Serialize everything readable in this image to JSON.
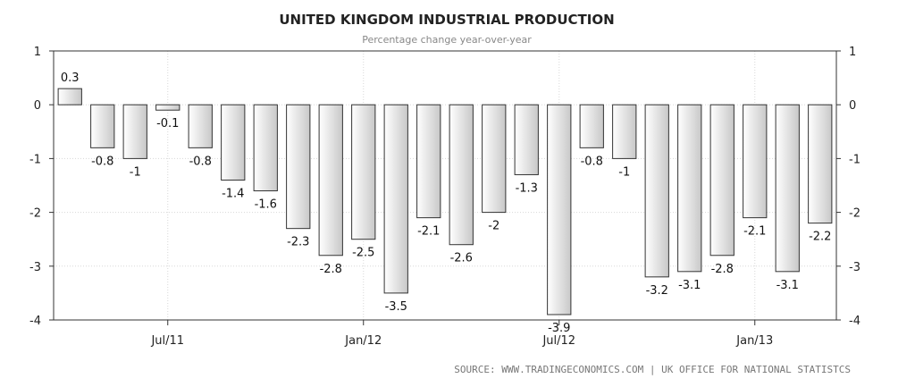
{
  "chart_data": {
    "type": "bar",
    "title": "UNITED KINGDOM INDUSTRIAL PRODUCTION",
    "subtitle": "Percentage change year-over-year",
    "source": "SOURCE: WWW.TRADINGECONOMICS.COM  |  UK OFFICE FOR NATIONAL STATISTCS",
    "values": [
      0.3,
      -0.8,
      -1,
      -0.1,
      -0.8,
      -1.4,
      -1.6,
      -2.3,
      -2.8,
      -2.5,
      -3.5,
      -2.1,
      -2.6,
      -2,
      -1.3,
      -3.9,
      -0.8,
      -1,
      -3.2,
      -3.1,
      -2.8,
      -2.1,
      -3.1,
      -2.2
    ],
    "data_labels": [
      "0.3",
      "-0.8",
      "-1",
      "-0.1",
      "-0.8",
      "-1.4",
      "-1.6",
      "-2.3",
      "-2.8",
      "-2.5",
      "-3.5",
      "-2.1",
      "-2.6",
      "-2",
      "-1.3",
      "-3.9",
      "-0.8",
      "-1",
      "-3.2",
      "-3.1",
      "-2.8",
      "-2.1",
      "-3.1",
      "-2.2"
    ],
    "x_tick_labels": [
      {
        "label": "Jul/11",
        "index": 3
      },
      {
        "label": "Jan/12",
        "index": 9
      },
      {
        "label": "Jul/12",
        "index": 15
      },
      {
        "label": "Jan/13",
        "index": 21
      }
    ],
    "y_ticks": [
      1,
      0,
      -1,
      -2,
      -3,
      -4
    ],
    "y_tick_labels": [
      "1",
      "0",
      "-1",
      "-2",
      "-3",
      "-4"
    ],
    "ylim": [
      -4,
      1
    ],
    "grid": true,
    "bar_fill_top": "#ffffff",
    "bar_fill_bottom": "#c8c8c8",
    "bar_stroke": "#333333"
  }
}
